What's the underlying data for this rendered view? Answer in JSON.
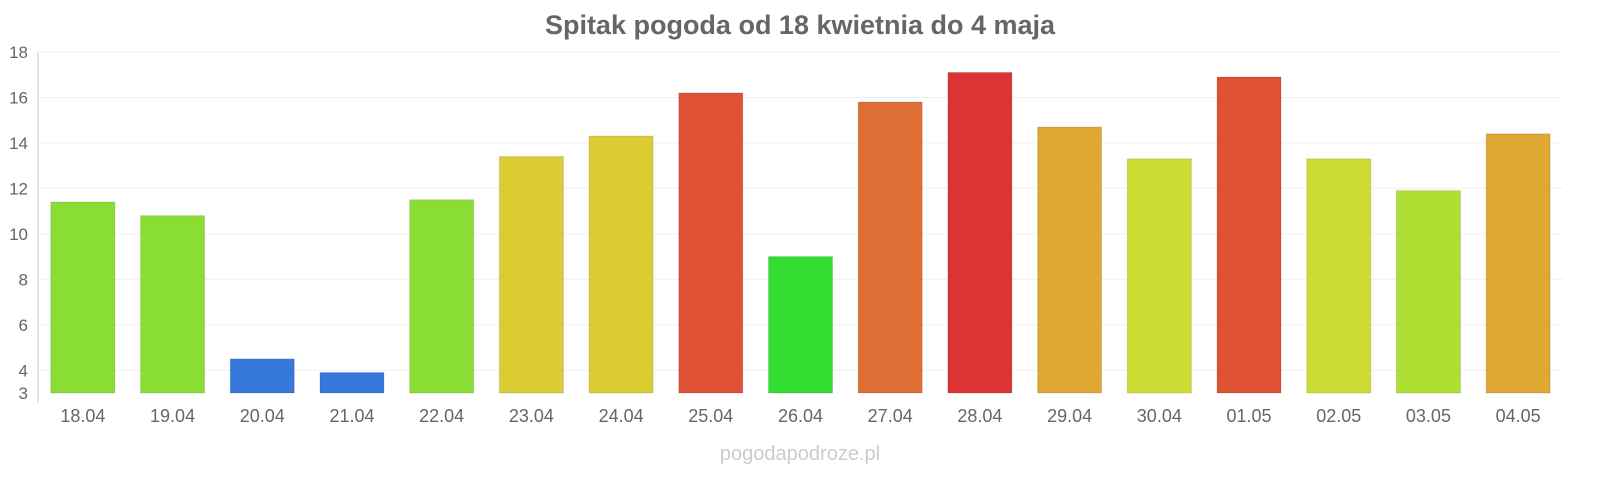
{
  "chart_data": {
    "type": "bar",
    "title": "Spitak pogoda od 18 kwietnia do 4 maja",
    "xlabel": "",
    "ylabel": "",
    "ylim": [
      3,
      18
    ],
    "yticks": [
      3,
      4,
      6,
      8,
      10,
      12,
      14,
      16,
      18
    ],
    "grid": true,
    "categories": [
      "18.04",
      "19.04",
      "20.04",
      "21.04",
      "22.04",
      "23.04",
      "24.04",
      "25.04",
      "26.04",
      "27.04",
      "28.04",
      "29.04",
      "30.04",
      "01.05",
      "02.05",
      "03.05",
      "04.05"
    ],
    "values": [
      11.4,
      10.8,
      4.5,
      3.9,
      11.5,
      13.4,
      14.3,
      16.2,
      9.0,
      15.8,
      17.1,
      14.7,
      13.3,
      16.9,
      13.3,
      11.9,
      14.4
    ],
    "colors": [
      "#8ade33",
      "#8ade33",
      "#3478dc",
      "#3478dc",
      "#8ade33",
      "#dccc33",
      "#dccc33",
      "#de5133",
      "#33de33",
      "#de6e33",
      "#de3333",
      "#dea833",
      "#ccdc33",
      "#de5133",
      "#ccdc33",
      "#ade033",
      "#dea833"
    ]
  },
  "footer": "pogodapodroze.pl"
}
